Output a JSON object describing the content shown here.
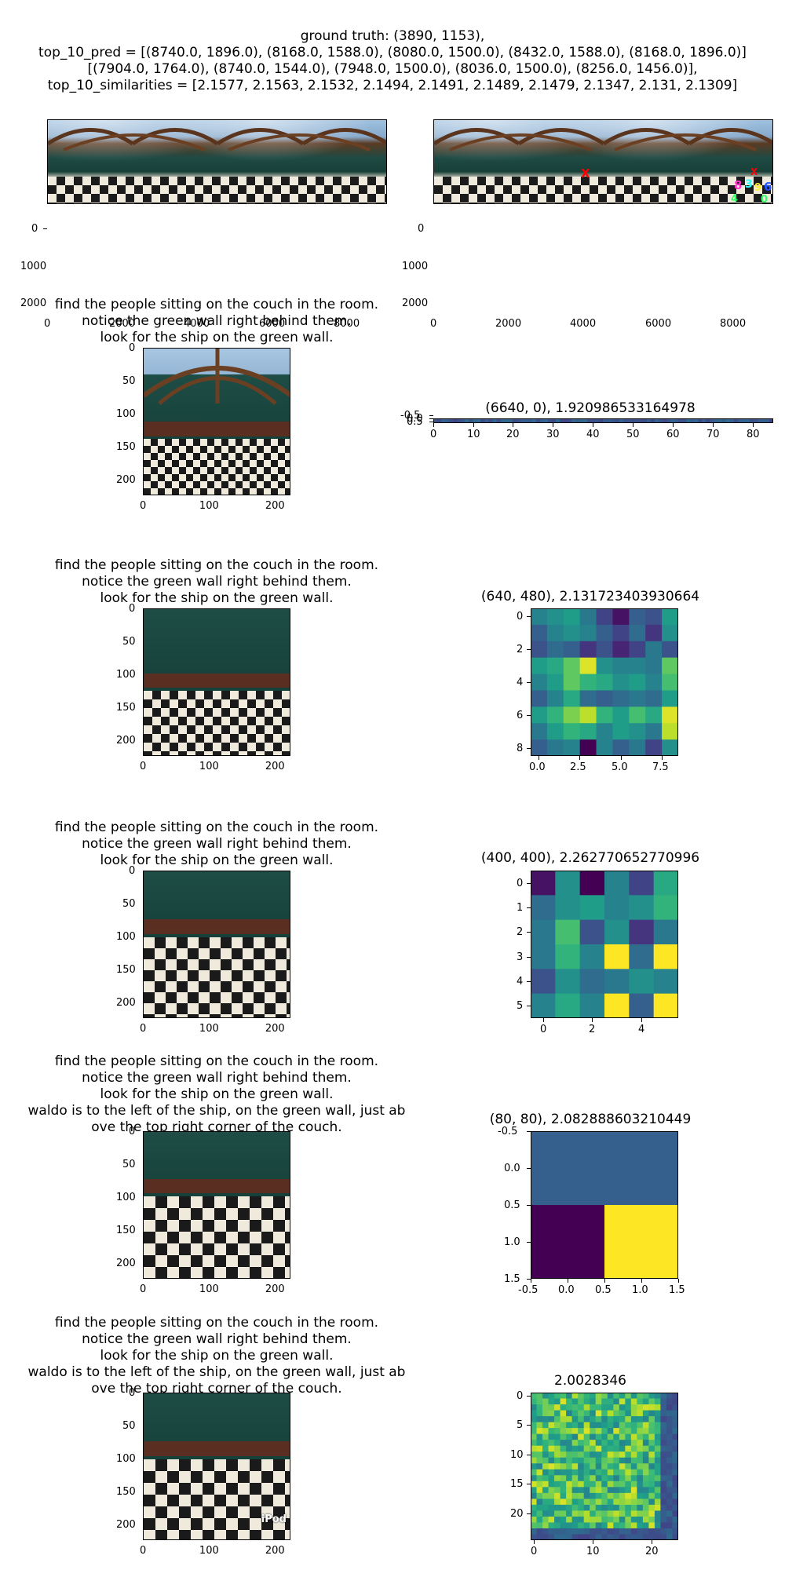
{
  "header": {
    "lines": [
      "ground truth: (3890, 1153),",
      "top_10_pred = [(8740.0, 1896.0), (8168.0, 1588.0), (8080.0, 1500.0), (8432.0, 1588.0), (8168.0, 1896.0)]",
      "[(7904.0, 1764.0), (8740.0, 1544.0), (7948.0, 1500.0), (8036.0, 1500.0), (8256.0, 1456.0)],",
      "top_10_similarities = [2.1577, 2.1563, 2.1532, 2.1494, 2.1491, 2.1489, 2.1479, 2.1347, 2.131, 2.1309]"
    ]
  },
  "prompt_lines_a": [
    "find the people sitting on the couch in the room.",
    "notice the green wall right behind them.",
    "look for the ship on the green wall."
  ],
  "prompt_lines_b": [
    "find the people sitting on the couch in the room.",
    "notice the green wall right behind them.",
    "look for the ship on the green wall.",
    "waldo is to the left of the ship, on the green wall, just ab",
    "ove the top right corner of the couch."
  ],
  "crop_axes": {
    "xticks": [
      "0",
      "100",
      "200"
    ],
    "yticks": [
      "0",
      "50",
      "100",
      "150",
      "200"
    ]
  },
  "pano_axes": {
    "xticks": [
      "0",
      "2000",
      "4000",
      "6000",
      "8000"
    ],
    "yticks": [
      "0",
      "1000",
      "2000"
    ]
  },
  "overlay_labels": [
    "X",
    "8",
    "3",
    "9",
    "6",
    "4",
    "0"
  ],
  "watermark": "iPod",
  "colors": {
    "viridis_low": "#440154",
    "viridis_high": "#fde725",
    "marker_red": "#ff0000"
  },
  "chart_data": [
    {
      "type": "heatmap",
      "title": "(6640, 0), 1.920986533164978",
      "xticks": [
        "0",
        "10",
        "20",
        "30",
        "40",
        "50",
        "60",
        "70",
        "80"
      ],
      "yticks": [
        "-0.5",
        "0.0",
        "0.5"
      ],
      "xlim": [
        0,
        85
      ],
      "shape": [
        1,
        86
      ]
    },
    {
      "type": "heatmap",
      "title": "(640, 480), 2.131723403930664",
      "xticks": [
        "0.0",
        "2.5",
        "5.0",
        "7.5"
      ],
      "yticks": [
        "0",
        "2",
        "4",
        "6",
        "8"
      ],
      "shape": [
        9,
        9
      ],
      "values": [
        [
          0.45,
          0.5,
          0.55,
          0.4,
          0.2,
          0.05,
          0.3,
          0.25,
          0.55
        ],
        [
          0.3,
          0.45,
          0.5,
          0.45,
          0.3,
          0.2,
          0.35,
          0.15,
          0.5
        ],
        [
          0.25,
          0.35,
          0.3,
          0.15,
          0.25,
          0.1,
          0.2,
          0.4,
          0.25
        ],
        [
          0.55,
          0.6,
          0.75,
          0.95,
          0.5,
          0.45,
          0.45,
          0.4,
          0.75
        ],
        [
          0.45,
          0.55,
          0.75,
          0.65,
          0.6,
          0.5,
          0.55,
          0.45,
          0.7
        ],
        [
          0.3,
          0.45,
          0.6,
          0.35,
          0.3,
          0.35,
          0.4,
          0.35,
          0.55
        ],
        [
          0.55,
          0.65,
          0.8,
          0.9,
          0.65,
          0.55,
          0.7,
          0.6,
          0.95
        ],
        [
          0.4,
          0.55,
          0.65,
          0.6,
          0.45,
          0.55,
          0.5,
          0.4,
          0.9
        ],
        [
          0.3,
          0.4,
          0.45,
          0.0,
          0.45,
          0.3,
          0.4,
          0.2,
          0.5
        ]
      ]
    },
    {
      "type": "heatmap",
      "title": "(400, 400), 2.262770652770996",
      "xticks": [
        "0",
        "2",
        "4"
      ],
      "yticks": [
        "0",
        "1",
        "2",
        "3",
        "4",
        "5"
      ],
      "shape": [
        6,
        6
      ],
      "values": [
        [
          0.05,
          0.5,
          0.0,
          0.45,
          0.2,
          0.6
        ],
        [
          0.35,
          0.5,
          0.55,
          0.45,
          0.5,
          0.65
        ],
        [
          0.4,
          0.7,
          0.25,
          0.5,
          0.15,
          0.4
        ],
        [
          0.4,
          0.65,
          0.45,
          1.0,
          0.35,
          1.0
        ],
        [
          0.25,
          0.5,
          0.35,
          0.4,
          0.5,
          0.45
        ],
        [
          0.45,
          0.6,
          0.45,
          1.0,
          0.3,
          1.0
        ]
      ]
    },
    {
      "type": "heatmap",
      "title": "(80, 80), 2.082888603210449",
      "xticks": [
        "-0.5",
        "0.0",
        "0.5",
        "1.0",
        "1.5"
      ],
      "yticks": [
        "-0.5",
        "0.0",
        "0.5",
        "1.0",
        "1.5"
      ],
      "shape": [
        2,
        2
      ],
      "values": [
        [
          0.3,
          0.3
        ],
        [
          0.0,
          1.0
        ]
      ]
    },
    {
      "type": "heatmap",
      "title": "2.0028346",
      "xticks": [
        "0",
        "10",
        "20"
      ],
      "yticks": [
        "0",
        "5",
        "10",
        "15",
        "20"
      ],
      "shape": [
        25,
        25
      ],
      "seed": 7
    }
  ]
}
